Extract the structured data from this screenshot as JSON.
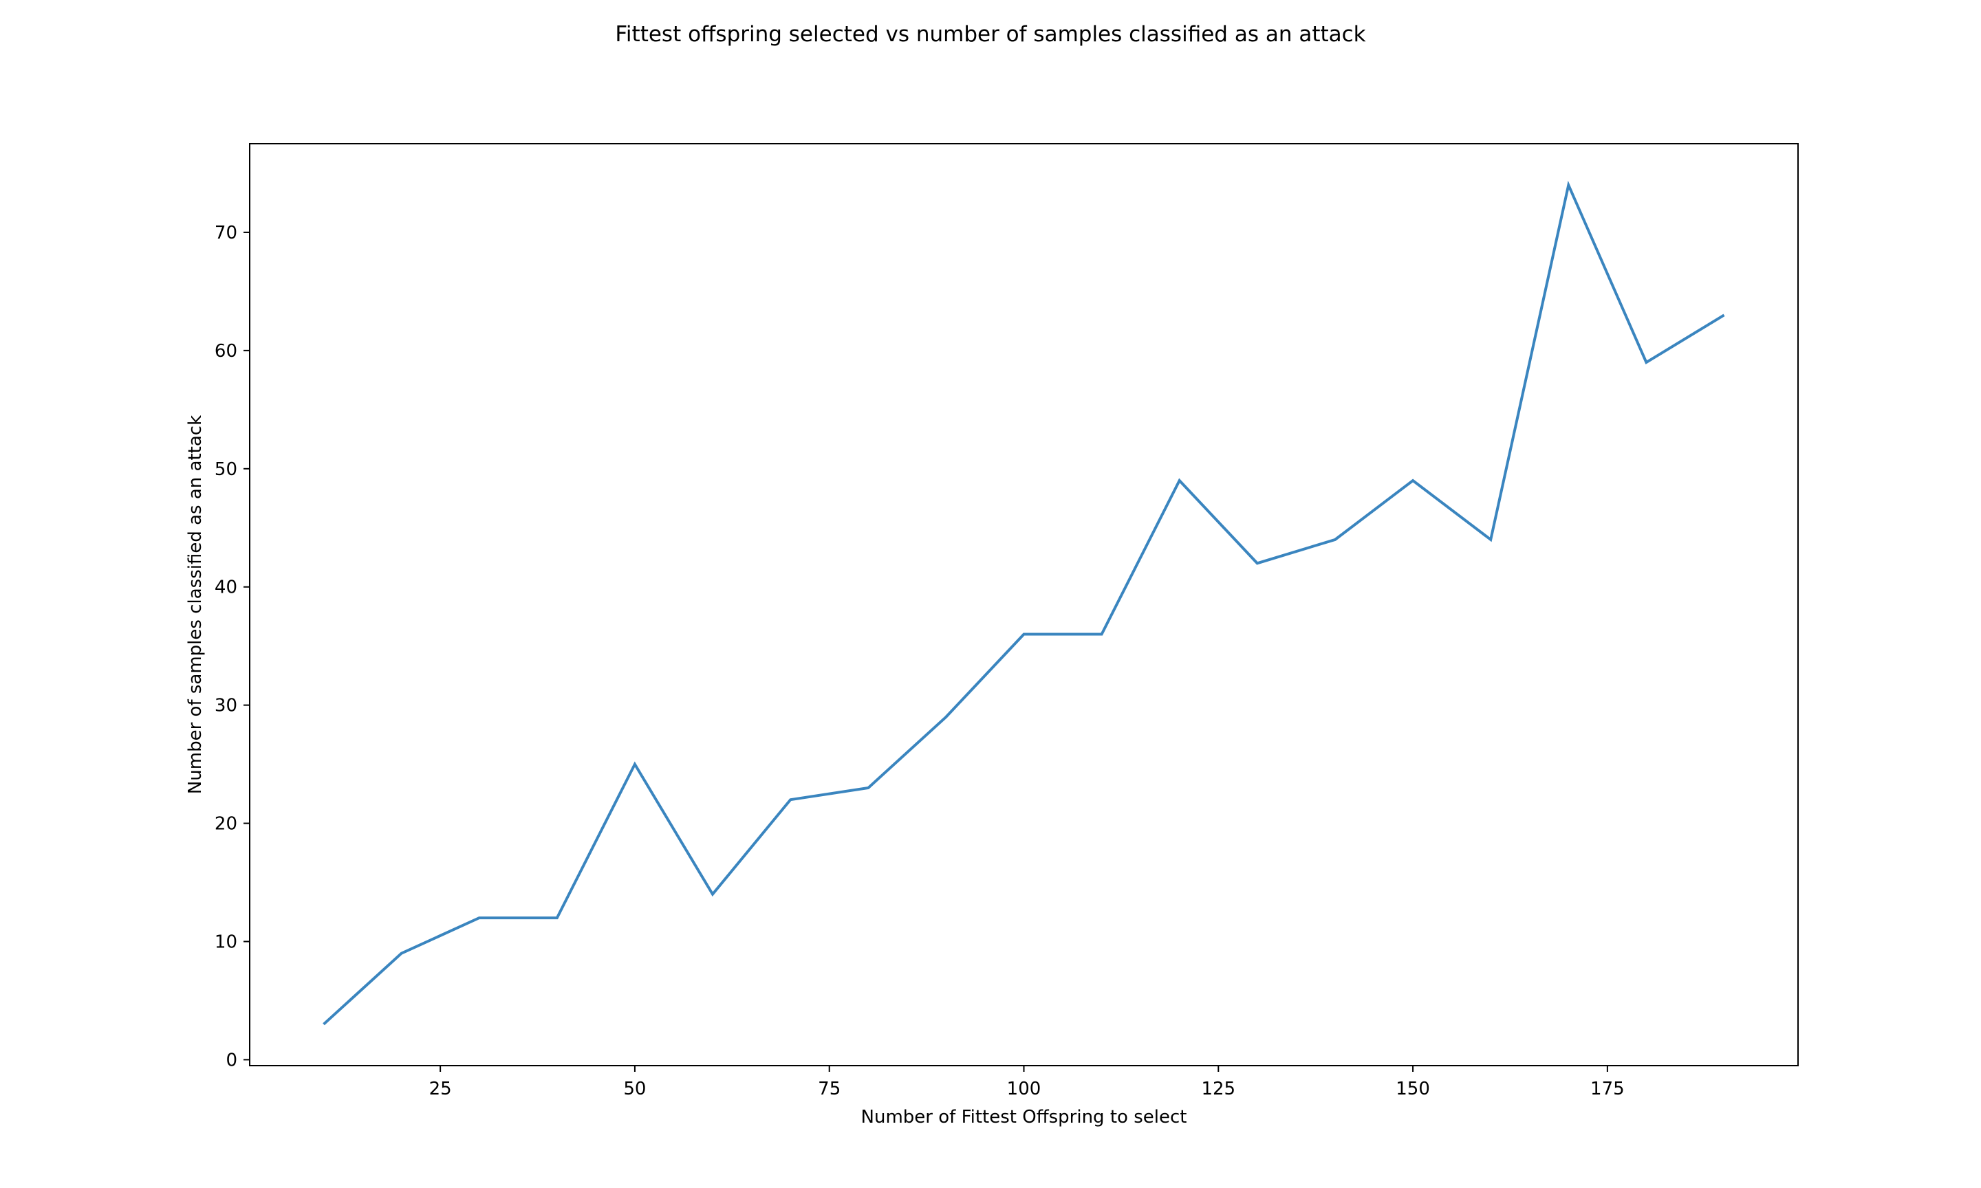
{
  "chart_data": {
    "type": "line",
    "title": "Fittest offspring selected vs number of samples classified as an attack",
    "xlabel": "Number of Fittest Offspring to select",
    "ylabel": "Number of samples classified as an attack",
    "xlim": [
      0.5,
      199.5
    ],
    "ylim": [
      -0.5,
      77.5
    ],
    "xticks": [
      25,
      50,
      75,
      100,
      125,
      150,
      175
    ],
    "yticks": [
      0,
      10,
      20,
      30,
      40,
      50,
      60,
      70
    ],
    "grid": false,
    "series": [
      {
        "color": "#3a85bf",
        "x": [
          10,
          20,
          30,
          40,
          50,
          60,
          70,
          80,
          90,
          100,
          110,
          120,
          130,
          140,
          150,
          160,
          170,
          180,
          190
        ],
        "y": [
          3,
          9,
          12,
          12,
          25,
          14,
          22,
          23,
          29,
          36,
          36,
          49,
          42,
          44,
          49,
          44,
          74,
          59,
          63
        ]
      }
    ]
  }
}
